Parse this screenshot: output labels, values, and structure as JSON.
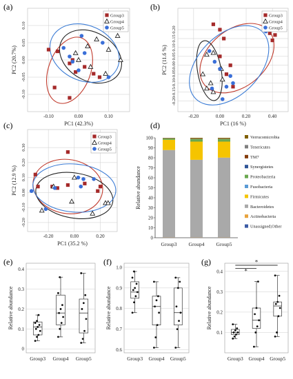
{
  "colors": {
    "group3": "#a52a2a",
    "group4": "#222222",
    "group5": "#3a6fd8",
    "ellipse3": "#c0392b",
    "ellipse4": "#222222",
    "ellipse5": "#3a7bd5",
    "grid": "#cccccc",
    "box": "#333333"
  },
  "chart_data": [
    {
      "type": "scatter",
      "panel": "(a)",
      "xlabel": "PC1 (42.3%)",
      "ylabel": "PC2 (20.7%)",
      "xlim": [
        -0.17,
        0.17
      ],
      "ylim": [
        -0.15,
        0.15
      ],
      "xticks": [
        -0.1,
        0.0,
        0.1
      ],
      "xtick_labels": [
        "-0.10",
        "0.00",
        "0.10"
      ],
      "yticks": [
        -0.1,
        -0.05,
        0.0,
        0.05,
        0.1
      ],
      "ytick_labels": [
        "-0.10",
        "-0.05",
        "0.00",
        "0.05",
        "0.10"
      ],
      "grid": true,
      "legend": "top-right",
      "series": [
        {
          "name": "Group3",
          "marker": "square",
          "color": "#a52a2a",
          "ellipse": [
            -0.03,
            -0.03,
            0.07,
            0.1,
            20
          ],
          "points": [
            [
              -0.1,
              0.03
            ],
            [
              -0.07,
              0.025
            ],
            [
              -0.03,
              -0.01
            ],
            [
              -0.02,
              0.0
            ],
            [
              -0.01,
              -0.035
            ],
            [
              -0.08,
              -0.08
            ],
            [
              -0.03,
              -0.11
            ],
            [
              0.02,
              -0.02
            ],
            [
              0.05,
              -0.04
            ],
            [
              0.07,
              -0.05
            ]
          ]
        },
        {
          "name": "Group4",
          "marker": "triangle",
          "color": "#222222",
          "ellipse": [
            0.04,
            0.01,
            0.11,
            0.07,
            30
          ],
          "points": [
            [
              0.1,
              0.09
            ],
            [
              0.13,
              0.07
            ],
            [
              0.1,
              0.03
            ],
            [
              0.14,
              0.0
            ],
            [
              0.03,
              0.04
            ],
            [
              0.04,
              -0.02
            ],
            [
              -0.01,
              0.02
            ],
            [
              0.06,
              0.06
            ],
            [
              0.0,
              0.0
            ],
            [
              0.09,
              -0.04
            ]
          ]
        },
        {
          "name": "Group5",
          "marker": "circle",
          "color": "#3a6fd8",
          "ellipse": [
            0.02,
            0.02,
            0.12,
            0.08,
            25
          ],
          "points": [
            [
              -0.05,
              0.035
            ],
            [
              0.01,
              0.07
            ],
            [
              0.02,
              0.02
            ],
            [
              -0.02,
              -0.005
            ],
            [
              0.08,
              0.05
            ],
            [
              0.1,
              -0.05
            ],
            [
              -0.03,
              0.01
            ],
            [
              0.0,
              -0.03
            ]
          ]
        }
      ]
    },
    {
      "type": "scatter",
      "panel": "(b)",
      "xlabel": "PC1 (16 %)",
      "ylabel": "PC2 (11.6 %)",
      "xlim": [
        -0.32,
        0.52
      ],
      "ylim": [
        -0.26,
        0.32
      ],
      "xticks": [
        -0.2,
        0.0,
        0.2,
        0.4
      ],
      "xtick_labels": [
        "-0.20",
        "0.00",
        "0.20",
        "0.40"
      ],
      "yticks": [
        -0.2,
        -0.15,
        -0.1,
        -0.05,
        0.0,
        0.05,
        0.1,
        0.15,
        0.2
      ],
      "ytick_labels": [
        "-0.20",
        "-0.15",
        "-0.10",
        "-0.05",
        "0.00",
        "0.05",
        "0.10",
        "0.15",
        "0.20"
      ],
      "grid": true,
      "legend": "top-right",
      "series": [
        {
          "name": "Group3",
          "marker": "square",
          "color": "#a52a2a",
          "ellipse": [
            0.13,
            0.04,
            0.32,
            0.16,
            -40
          ],
          "points": [
            [
              -0.05,
              0.23
            ],
            [
              0.0,
              0.2
            ],
            [
              0.03,
              0.15
            ],
            [
              0.38,
              0.18
            ],
            [
              0.42,
              0.17
            ],
            [
              0.4,
              0.14
            ],
            [
              0.08,
              0.0
            ],
            [
              0.05,
              -0.05
            ],
            [
              0.1,
              -0.12
            ],
            [
              0.0,
              0.05
            ]
          ]
        },
        {
          "name": "Group4",
          "marker": "triangle",
          "color": "#222222",
          "ellipse": [
            -0.08,
            -0.03,
            0.09,
            0.17,
            -10
          ],
          "points": [
            [
              -0.1,
              0.06
            ],
            [
              -0.13,
              -0.05
            ],
            [
              -0.07,
              -0.1
            ],
            [
              -0.1,
              -0.13
            ],
            [
              -0.05,
              -0.15
            ],
            [
              0.01,
              -0.02
            ],
            [
              0.02,
              -0.08
            ],
            [
              -0.05,
              0.07
            ]
          ]
        },
        {
          "name": "Group5",
          "marker": "circle",
          "color": "#3a6fd8",
          "ellipse": [
            0.07,
            0.0,
            0.36,
            0.17,
            -45
          ],
          "points": [
            [
              -0.08,
              0.08
            ],
            [
              -0.04,
              0.02
            ],
            [
              0.0,
              -0.02
            ],
            [
              0.05,
              -0.12
            ],
            [
              0.1,
              -0.1
            ],
            [
              0.08,
              -0.06
            ],
            [
              0.35,
              0.19
            ],
            [
              -0.06,
              -0.13
            ],
            [
              0.02,
              -0.19
            ]
          ]
        }
      ]
    },
    {
      "type": "scatter",
      "panel": "(c)",
      "xlabel": "PC1 (35.2 %)",
      "ylabel": "PC2 (12.9 %)",
      "xlim": [
        -0.36,
        0.33
      ],
      "ylim": [
        -0.26,
        0.42
      ],
      "xticks": [
        -0.2,
        0.0,
        0.2
      ],
      "xtick_labels": [
        "-0.20",
        "0.00",
        "0.20"
      ],
      "yticks": [
        -0.2,
        -0.1,
        0.0,
        0.1,
        0.2,
        0.3
      ],
      "ytick_labels": [
        "-0.20",
        "-0.10",
        "0.00",
        "0.10",
        "0.20",
        "0.30"
      ],
      "grid": true,
      "legend": "top-right",
      "series": [
        {
          "name": "Group3",
          "marker": "square",
          "color": "#a52a2a",
          "ellipse": [
            -0.05,
            0.04,
            0.27,
            0.18,
            10
          ],
          "points": [
            [
              -0.05,
              0.27
            ],
            [
              -0.3,
              0.12
            ],
            [
              -0.28,
              0.04
            ],
            [
              -0.17,
              0.04
            ],
            [
              -0.13,
              0.03
            ],
            [
              -0.05,
              0.05
            ],
            [
              0.08,
              0.06
            ],
            [
              0.2,
              0.04
            ],
            [
              0.18,
              0.01
            ]
          ]
        },
        {
          "name": "Group4",
          "marker": "triangle",
          "color": "#222222",
          "ellipse": [
            0.0,
            -0.02,
            0.3,
            0.15,
            10
          ],
          "points": [
            [
              -0.25,
              -0.12
            ],
            [
              -0.16,
              0.04
            ],
            [
              -0.02,
              -0.06
            ],
            [
              0.14,
              -0.14
            ],
            [
              0.24,
              -0.07
            ],
            [
              0.26,
              -0.07
            ],
            [
              0.0,
              0.1
            ]
          ]
        },
        {
          "name": "Group5",
          "marker": "circle",
          "color": "#3a6fd8",
          "ellipse": [
            0.0,
            0.03,
            0.32,
            0.16,
            5
          ],
          "points": [
            [
              -0.33,
              0.01
            ],
            [
              -0.22,
              -0.11
            ],
            [
              -0.15,
              0.03
            ],
            [
              0.03,
              0.1
            ],
            [
              0.07,
              0.09
            ],
            [
              0.15,
              0.09
            ],
            [
              0.05,
              0.04
            ]
          ]
        }
      ]
    },
    {
      "type": "bar",
      "stacked": true,
      "panel": "(d)",
      "ylabel": "Relative  abundance",
      "categories": [
        "Group3",
        "Group4",
        "Group5"
      ],
      "ylim": [
        0,
        100
      ],
      "yticks": [
        0,
        10,
        20,
        30,
        40,
        50,
        60,
        70,
        80,
        90,
        100
      ],
      "legend": "right",
      "series": [
        {
          "name": "Unassigned;Other",
          "color": "#3b5ba5",
          "values": [
            0,
            0,
            0
          ]
        },
        {
          "name": "Actinobacteria",
          "color": "#e8a33d",
          "values": [
            0.2,
            0.2,
            0.2
          ]
        },
        {
          "name": "Bacteroidetes",
          "color": "#a9a9a9",
          "values": [
            87.6,
            77.8,
            80.0
          ]
        },
        {
          "name": "Firmicutes",
          "color": "#f5c400",
          "values": [
            10.2,
            18.2,
            16.0
          ]
        },
        {
          "name": "Fusobacteria",
          "color": "#5b9bd5",
          "values": [
            0,
            0,
            0
          ]
        },
        {
          "name": "Proteobacteria",
          "color": "#6aa84f",
          "values": [
            1.3,
            2.6,
            2.6
          ]
        },
        {
          "name": "Synergistetes",
          "color": "#2f5597",
          "values": [
            0,
            0,
            0
          ]
        },
        {
          "name": "TM7",
          "color": "#843c0c",
          "values": [
            0.3,
            0.3,
            0.3
          ]
        },
        {
          "name": "Tenericutes",
          "color": "#7f7f7f",
          "values": [
            0.2,
            0.2,
            0.2
          ]
        },
        {
          "name": "Verrucomicrobia",
          "color": "#806000",
          "values": [
            0.2,
            0.7,
            0.7
          ]
        }
      ],
      "legend_order": [
        "Verrucomicrobia",
        "Tenericutes",
        "TM7",
        "Synergistetes",
        "Proteobacteria",
        "Fusobacteria",
        "Firmicutes",
        "Bacteroidetes",
        "Actinobacteria",
        "Unassigned;Other"
      ]
    },
    {
      "type": "box",
      "panel": "(e)",
      "ylabel": "Relative abundance",
      "categories": [
        "Group3",
        "Group4",
        "Group5"
      ],
      "ylim": [
        -0.02,
        0.43
      ],
      "yticks": [
        0,
        0.1,
        0.2,
        0.3,
        0.4
      ],
      "ytick_labels": [
        "0",
        "0.1",
        "0.2",
        "0.3",
        "0.4"
      ],
      "boxes": [
        {
          "min": 0.04,
          "q1": 0.07,
          "median": 0.11,
          "q3": 0.135,
          "max": 0.17,
          "points": [
            0.04,
            0.06,
            0.07,
            0.09,
            0.1,
            0.11,
            0.12,
            0.13,
            0.14,
            0.17
          ]
        },
        {
          "min": 0.06,
          "q1": 0.12,
          "median": 0.18,
          "q3": 0.27,
          "max": 0.36,
          "points": [
            0.06,
            0.1,
            0.13,
            0.16,
            0.18,
            0.2,
            0.22,
            0.28,
            0.36
          ]
        },
        {
          "min": 0.03,
          "q1": 0.08,
          "median": 0.18,
          "q3": 0.25,
          "max": 0.38,
          "points": [
            0.03,
            0.05,
            0.09,
            0.15,
            0.2,
            0.23,
            0.27,
            0.38
          ]
        }
      ],
      "significance": []
    },
    {
      "type": "box",
      "panel": "(f)",
      "ylabel": "Relative abundance",
      "categories": [
        "Group3",
        "Group4",
        "Group5"
      ],
      "ylim": [
        0.585,
        1.02
      ],
      "yticks": [
        0.6,
        0.7,
        0.8,
        0.9,
        1.0
      ],
      "ytick_labels": [
        "0.6",
        "0.7",
        "0.8",
        "0.9",
        "1.0"
      ],
      "boxes": [
        {
          "min": 0.78,
          "q1": 0.85,
          "median": 0.88,
          "q3": 0.93,
          "max": 0.98,
          "points": [
            0.78,
            0.83,
            0.86,
            0.88,
            0.89,
            0.9,
            0.92,
            0.95,
            0.98
          ]
        },
        {
          "min": 0.61,
          "q1": 0.72,
          "median": 0.81,
          "q3": 0.86,
          "max": 0.93,
          "points": [
            0.61,
            0.66,
            0.72,
            0.78,
            0.81,
            0.84,
            0.86,
            0.93
          ]
        },
        {
          "min": 0.61,
          "q1": 0.72,
          "median": 0.78,
          "q3": 0.9,
          "max": 0.95,
          "points": [
            0.61,
            0.7,
            0.74,
            0.78,
            0.81,
            0.9,
            0.93,
            0.95
          ]
        }
      ],
      "significance": []
    },
    {
      "type": "box",
      "panel": "(g)",
      "ylabel": "Relative abundance",
      "categories": [
        "Group3",
        "Group4",
        "Group5"
      ],
      "ylim": [
        0.0,
        0.44
      ],
      "yticks": [
        0.1,
        0.2,
        0.3,
        0.4
      ],
      "ytick_labels": [
        "0.1",
        "0.2",
        "0.3",
        "0.4"
      ],
      "boxes": [
        {
          "min": 0.07,
          "q1": 0.09,
          "median": 0.1,
          "q3": 0.115,
          "max": 0.14,
          "points": [
            0.07,
            0.08,
            0.09,
            0.1,
            0.1,
            0.11,
            0.12,
            0.14
          ]
        },
        {
          "min": 0.03,
          "q1": 0.12,
          "median": 0.16,
          "q3": 0.22,
          "max": 0.35,
          "points": [
            0.03,
            0.1,
            0.13,
            0.16,
            0.19,
            0.22,
            0.35
          ]
        },
        {
          "min": 0.08,
          "q1": 0.18,
          "median": 0.23,
          "q3": 0.25,
          "max": 0.38,
          "points": [
            0.08,
            0.1,
            0.18,
            0.22,
            0.24,
            0.25,
            0.28,
            0.38
          ]
        }
      ],
      "significance": [
        {
          "from": 0,
          "to": 1,
          "label": "*",
          "y": 0.415
        },
        {
          "from": 0,
          "to": 2,
          "label": "*",
          "y": 0.43
        }
      ]
    }
  ],
  "labels": {
    "panel_a": "(a)",
    "panel_b": "(b)",
    "panel_c": "(c)",
    "panel_d": "(d)",
    "panel_e": "(e)",
    "panel_f": "(f)",
    "panel_g": "(g)"
  }
}
